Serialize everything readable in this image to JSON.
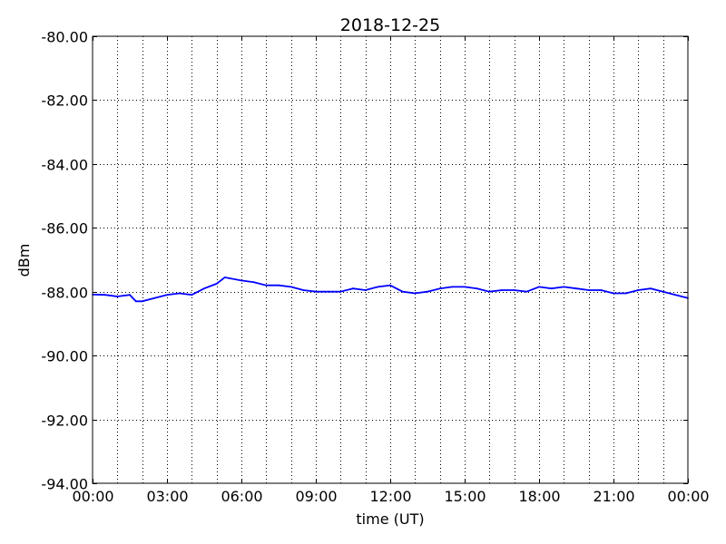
{
  "chart_data": {
    "type": "line",
    "title": "2018-12-25",
    "xlabel": "time (UT)",
    "ylabel": "dBm",
    "xlim_hours": [
      0,
      24
    ],
    "ylim": [
      -94,
      -80
    ],
    "grid": true,
    "grid_x_step_hours": 1,
    "line_color": "#0000ff",
    "xtick_labels": [
      "00:00",
      "03:00",
      "06:00",
      "09:00",
      "12:00",
      "15:00",
      "18:00",
      "21:00",
      "00:00"
    ],
    "ytick_labels": [
      "-80.00",
      "-82.00",
      "-84.00",
      "-86.00",
      "-88.00",
      "-90.00",
      "-92.00",
      "-94.00"
    ],
    "ytick_values": [
      -80,
      -82,
      -84,
      -86,
      -88,
      -90,
      -92,
      -94
    ],
    "x_hours": [
      0,
      0.5,
      1,
      1.5,
      1.75,
      2,
      2.5,
      3,
      3.5,
      4,
      4.5,
      5,
      5.33,
      6,
      6.5,
      7,
      7.5,
      8,
      8.5,
      9,
      9.5,
      10,
      10.5,
      11,
      11.5,
      12,
      12.5,
      13,
      13.5,
      14,
      14.5,
      15,
      15.5,
      16,
      16.5,
      17,
      17.5,
      18,
      18.5,
      19,
      19.5,
      20,
      20.5,
      21,
      21.5,
      22,
      22.5,
      23,
      23.5,
      24
    ],
    "values": [
      -88.09,
      -88.1,
      -88.15,
      -88.1,
      -88.3,
      -88.3,
      -88.2,
      -88.1,
      -88.05,
      -88.1,
      -87.9,
      -87.75,
      -87.55,
      -87.65,
      -87.7,
      -87.8,
      -87.8,
      -87.85,
      -87.95,
      -88.0,
      -88.0,
      -88.0,
      -87.9,
      -87.95,
      -87.85,
      -87.8,
      -88.0,
      -88.05,
      -88.0,
      -87.9,
      -87.85,
      -87.85,
      -87.9,
      -88.0,
      -87.95,
      -87.95,
      -88.0,
      -87.85,
      -87.9,
      -87.85,
      -87.9,
      -87.95,
      -87.95,
      -88.05,
      -88.05,
      -87.95,
      -87.9,
      -88.0,
      -88.1,
      -88.2
    ]
  }
}
